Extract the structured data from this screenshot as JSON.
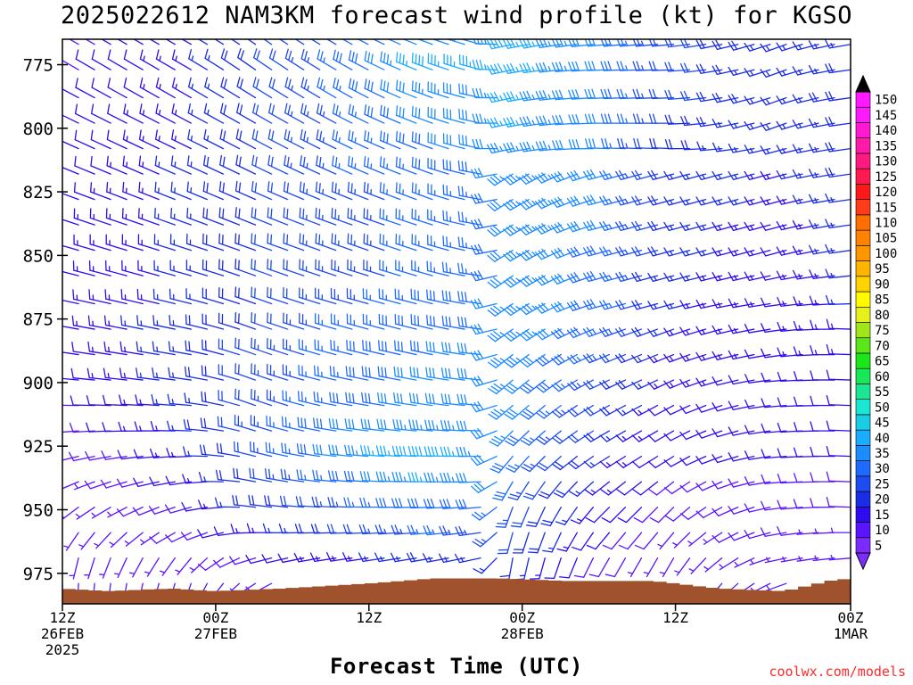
{
  "title": "2025022612 NAM3KM forecast wind profile (kt) for KGSO",
  "credit": "coolwx.com/models",
  "chart_data": {
    "type": "wind-barb-time-height",
    "title": "2025022612 NAM3KM forecast wind profile (kt) for KGSO",
    "xlabel": "Forecast Time (UTC)",
    "ylabel": "",
    "y_reversed": true,
    "ylim": [
      987,
      765
    ],
    "y_ticks": [
      775,
      800,
      825,
      850,
      875,
      900,
      925,
      950,
      975
    ],
    "xlim_hours": [
      0,
      36
    ],
    "x_ticks": [
      {
        "hour": 0,
        "lines": [
          "12Z",
          "26FEB",
          "2025"
        ]
      },
      {
        "hour": 7,
        "lines": [
          "00Z",
          "27FEB"
        ]
      },
      {
        "hour": 14,
        "lines": [
          "12Z"
        ]
      },
      {
        "hour": 21,
        "lines": [
          "00Z",
          "28FEB"
        ]
      },
      {
        "hour": 28,
        "lines": [
          "12Z"
        ]
      },
      {
        "hour": 36,
        "lines": [
          "00Z",
          "1MAR"
        ]
      }
    ],
    "levels_hpa": [
      767,
      777,
      788,
      798,
      808,
      818,
      828,
      838,
      848,
      858,
      869,
      879,
      889,
      899,
      909,
      919,
      929,
      939,
      949,
      959,
      969,
      979
    ],
    "wind_key_times": [
      0,
      6,
      9,
      13,
      17,
      19.2,
      20.5,
      22,
      25,
      28,
      33,
      36
    ],
    "wind_key_directions_deg": [
      [
        300,
        300,
        305,
        300,
        290,
        285,
        258,
        260,
        265,
        265,
        250,
        260
      ],
      [
        300,
        300,
        305,
        300,
        290,
        285,
        258,
        262,
        268,
        268,
        250,
        262
      ],
      [
        298,
        300,
        302,
        300,
        290,
        282,
        258,
        262,
        268,
        268,
        250,
        262
      ],
      [
        296,
        298,
        300,
        298,
        290,
        282,
        258,
        262,
        270,
        270,
        250,
        262
      ],
      [
        294,
        296,
        298,
        296,
        290,
        282,
        258,
        262,
        272,
        272,
        255,
        262
      ],
      [
        292,
        294,
        296,
        294,
        290,
        280,
        238,
        242,
        255,
        255,
        255,
        262
      ],
      [
        290,
        292,
        294,
        292,
        290,
        280,
        238,
        242,
        255,
        255,
        255,
        262
      ],
      [
        288,
        290,
        292,
        290,
        288,
        280,
        238,
        242,
        255,
        255,
        255,
        262
      ],
      [
        286,
        288,
        290,
        290,
        288,
        280,
        238,
        242,
        255,
        255,
        255,
        262
      ],
      [
        284,
        286,
        290,
        288,
        286,
        278,
        235,
        240,
        255,
        255,
        258,
        264
      ],
      [
        282,
        284,
        290,
        286,
        284,
        278,
        235,
        240,
        255,
        255,
        262,
        268
      ],
      [
        280,
        282,
        290,
        286,
        284,
        278,
        235,
        238,
        250,
        250,
        262,
        272
      ],
      [
        278,
        280,
        290,
        284,
        282,
        276,
        232,
        235,
        248,
        248,
        262,
        272
      ],
      [
        275,
        278,
        290,
        282,
        280,
        276,
        230,
        232,
        245,
        245,
        265,
        272
      ],
      [
        270,
        275,
        290,
        280,
        278,
        275,
        230,
        230,
        242,
        242,
        265,
        272
      ],
      [
        265,
        272,
        288,
        278,
        275,
        272,
        225,
        228,
        240,
        240,
        265,
        272
      ],
      [
        255,
        268,
        285,
        276,
        272,
        270,
        220,
        225,
        238,
        238,
        265,
        272
      ],
      [
        245,
        262,
        282,
        275,
        270,
        268,
        210,
        215,
        232,
        232,
        265,
        272
      ],
      [
        230,
        255,
        278,
        272,
        268,
        265,
        200,
        205,
        225,
        225,
        262,
        272
      ],
      [
        210,
        245,
        270,
        268,
        265,
        262,
        195,
        200,
        220,
        220,
        260,
        270
      ],
      [
        190,
        220,
        255,
        262,
        260,
        258,
        190,
        195,
        210,
        210,
        258,
        265
      ],
      [
        180,
        200,
        240,
        255,
        255,
        252,
        185,
        190,
        200,
        200,
        250,
        260
      ]
    ],
    "wind_key_speeds_kt": [
      [
        8,
        14,
        20,
        25,
        35,
        32,
        38,
        36,
        30,
        22,
        16,
        17
      ],
      [
        9,
        14,
        20,
        27,
        38,
        36,
        38,
        36,
        30,
        22,
        15,
        18
      ],
      [
        10,
        14,
        20,
        26,
        33,
        32,
        36,
        35,
        30,
        22,
        16,
        18
      ],
      [
        10,
        15,
        20,
        25,
        32,
        30,
        36,
        35,
        30,
        20,
        15,
        18
      ],
      [
        10,
        15,
        20,
        25,
        30,
        30,
        34,
        34,
        30,
        19,
        15,
        18
      ],
      [
        10,
        16,
        20,
        25,
        28,
        28,
        34,
        34,
        30,
        18,
        14,
        18
      ],
      [
        11,
        16,
        20,
        24,
        26,
        27,
        32,
        34,
        30,
        18,
        14,
        16
      ],
      [
        12,
        16,
        20,
        24,
        26,
        26,
        32,
        34,
        30,
        18,
        12,
        16
      ],
      [
        12,
        16,
        20,
        24,
        26,
        26,
        32,
        34,
        28,
        18,
        12,
        16
      ],
      [
        12,
        16,
        20,
        24,
        26,
        27,
        32,
        34,
        28,
        17,
        12,
        15
      ],
      [
        12,
        16,
        20,
        24,
        28,
        28,
        33,
        34,
        28,
        16,
        12,
        15
      ],
      [
        12,
        17,
        20,
        26,
        29,
        30,
        33,
        34,
        26,
        15,
        12,
        14
      ],
      [
        11,
        17,
        22,
        27,
        30,
        30,
        34,
        32,
        24,
        14,
        12,
        14
      ],
      [
        10,
        17,
        22,
        27,
        31,
        30,
        34,
        30,
        22,
        13,
        12,
        12
      ],
      [
        9,
        16,
        22,
        28,
        32,
        30,
        34,
        28,
        20,
        12,
        11,
        11
      ],
      [
        8,
        16,
        24,
        30,
        34,
        32,
        33,
        26,
        18,
        11,
        10,
        10
      ],
      [
        6,
        14,
        22,
        32,
        40,
        34,
        30,
        24,
        16,
        10,
        10,
        10
      ],
      [
        5,
        12,
        20,
        28,
        36,
        32,
        28,
        22,
        14,
        9,
        9,
        9
      ],
      [
        5,
        10,
        18,
        24,
        30,
        28,
        25,
        20,
        12,
        8,
        8,
        8
      ],
      [
        5,
        8,
        14,
        20,
        26,
        24,
        22,
        18,
        10,
        7,
        8,
        7
      ],
      [
        5,
        6,
        10,
        14,
        18,
        16,
        18,
        14,
        8,
        6,
        7,
        6
      ],
      [
        5,
        5,
        8,
        10,
        12,
        12,
        14,
        12,
        6,
        5,
        6,
        5
      ]
    ],
    "surface_pressure_times": [
      0,
      2,
      5,
      7,
      10,
      14,
      17,
      20,
      23,
      24,
      27,
      30,
      33,
      34,
      35,
      36
    ],
    "surface_pressure_hpa": [
      981,
      982,
      981,
      982,
      981,
      979,
      977,
      977,
      978,
      978,
      978,
      981,
      982,
      980,
      978,
      977
    ],
    "colorbar": {
      "labels": [
        "5",
        "10",
        "15",
        "20",
        "25",
        "30",
        "35",
        "40",
        "45",
        "50",
        "55",
        "60",
        "65",
        "70",
        "75",
        "80",
        "85",
        "90",
        "95",
        "100",
        "105",
        "110",
        "115",
        "120",
        "125",
        "130",
        "135",
        "140",
        "145",
        "150"
      ],
      "colors": [
        "#7d2cff",
        "#5a14ff",
        "#2d0cf0",
        "#1a2ce6",
        "#1f4cf0",
        "#1e6cff",
        "#1c8cff",
        "#1aacff",
        "#1acce6",
        "#1ae6d2",
        "#1ae696",
        "#1ae65a",
        "#1ae61a",
        "#5ae61a",
        "#a0e61a",
        "#e6f01a",
        "#fffa00",
        "#ffd200",
        "#ffb400",
        "#ff9600",
        "#ff8200",
        "#ff6e00",
        "#ff3c1a",
        "#ff1a1a",
        "#ff1a50",
        "#ff1a82",
        "#ff1aaa",
        "#ff1ad2",
        "#ff1aff",
        "#ff1aff"
      ],
      "top_arrow_color": "#000000",
      "bottom_arrow_color": "#7d2cff"
    },
    "terrain_color": "#a0522d"
  }
}
